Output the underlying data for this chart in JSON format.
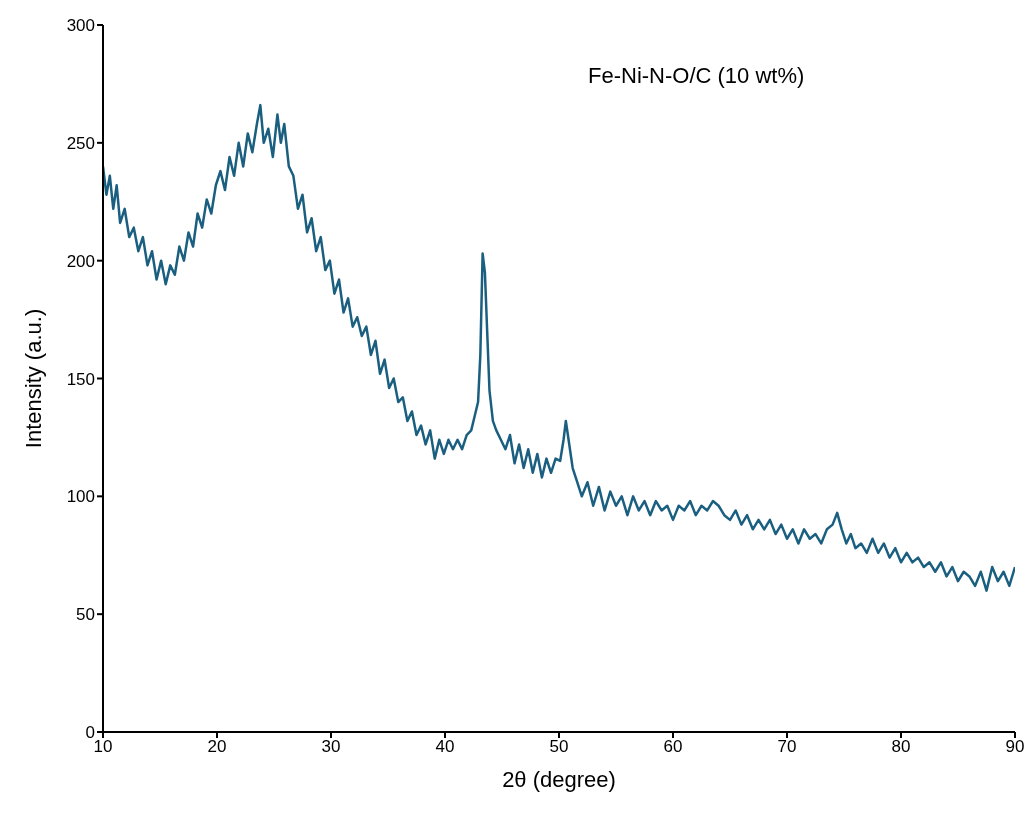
{
  "chart_data": {
    "type": "line",
    "xlabel": "2θ (degree)",
    "ylabel": "Intensity (a.u.)",
    "annotations": [
      "Fe-Ni-N-O/C (10 wt%)"
    ],
    "xlim": [
      10,
      90
    ],
    "ylim": [
      0,
      300
    ],
    "xticks": [
      10,
      20,
      30,
      40,
      50,
      60,
      70,
      80,
      90
    ],
    "yticks": [
      0,
      50,
      100,
      150,
      200,
      250,
      300
    ],
    "grid": false,
    "legend": false,
    "marker": "none",
    "line_style": "solid",
    "series": [
      {
        "color": "#1b5f80",
        "x": [
          10,
          10.3,
          10.6,
          10.9,
          11.2,
          11.5,
          11.9,
          12.3,
          12.7,
          13.1,
          13.5,
          13.9,
          14.3,
          14.7,
          15.1,
          15.5,
          15.9,
          16.3,
          16.7,
          17.1,
          17.5,
          17.9,
          18.3,
          18.7,
          19.1,
          19.5,
          19.9,
          20.3,
          20.7,
          21.1,
          21.5,
          21.9,
          22.3,
          22.7,
          23.1,
          23.5,
          23.8,
          24.1,
          24.5,
          24.9,
          25.3,
          25.6,
          25.9,
          26.3,
          26.7,
          27.1,
          27.5,
          27.9,
          28.3,
          28.7,
          29.1,
          29.5,
          29.9,
          30.3,
          30.7,
          31.1,
          31.5,
          31.9,
          32.3,
          32.7,
          33.1,
          33.5,
          33.9,
          34.3,
          34.7,
          35.1,
          35.5,
          35.9,
          36.3,
          36.7,
          37.1,
          37.5,
          37.9,
          38.3,
          38.7,
          39.1,
          39.5,
          39.9,
          40.3,
          40.7,
          41.1,
          41.5,
          41.9,
          42.3,
          42.6,
          42.9,
          43.1,
          43.3,
          43.5,
          43.7,
          43.9,
          44.2,
          44.5,
          44.9,
          45.3,
          45.7,
          46.1,
          46.5,
          46.9,
          47.3,
          47.7,
          48.1,
          48.5,
          48.9,
          49.3,
          49.7,
          50.1,
          50.4,
          50.6,
          50.9,
          51.2,
          51.6,
          52,
          52.5,
          53,
          53.5,
          54,
          54.5,
          55,
          55.5,
          56,
          56.5,
          57,
          57.5,
          58,
          58.5,
          59,
          59.5,
          60,
          60.5,
          61,
          61.5,
          62,
          62.5,
          63,
          63.5,
          64,
          64.5,
          65,
          65.5,
          66,
          66.5,
          67,
          67.5,
          68,
          68.5,
          69,
          69.5,
          70,
          70.5,
          71,
          71.5,
          72,
          72.5,
          73,
          73.5,
          74,
          74.4,
          74.8,
          75.2,
          75.6,
          76,
          76.5,
          77,
          77.5,
          78,
          78.5,
          79,
          79.5,
          80,
          80.5,
          81,
          81.5,
          82,
          82.5,
          83,
          83.5,
          84,
          84.5,
          85,
          85.5,
          86,
          86.5,
          87,
          87.5,
          88,
          88.5,
          89,
          89.5,
          90
        ],
        "values": [
          240,
          228,
          236,
          222,
          232,
          216,
          222,
          210,
          214,
          204,
          210,
          198,
          204,
          192,
          200,
          190,
          198,
          194,
          206,
          200,
          212,
          206,
          220,
          214,
          226,
          220,
          232,
          238,
          230,
          244,
          236,
          250,
          240,
          254,
          246,
          258,
          266,
          250,
          256,
          244,
          262,
          250,
          258,
          240,
          236,
          222,
          228,
          212,
          218,
          204,
          210,
          196,
          200,
          186,
          192,
          178,
          184,
          172,
          176,
          168,
          172,
          160,
          166,
          152,
          158,
          146,
          150,
          140,
          142,
          132,
          136,
          126,
          130,
          122,
          128,
          116,
          124,
          118,
          124,
          120,
          124,
          120,
          126,
          128,
          134,
          140,
          160,
          203,
          195,
          170,
          145,
          132,
          128,
          124,
          120,
          126,
          114,
          122,
          112,
          120,
          110,
          118,
          108,
          116,
          110,
          116,
          115,
          124,
          132,
          122,
          112,
          106,
          100,
          106,
          96,
          104,
          94,
          102,
          96,
          100,
          92,
          100,
          94,
          98,
          92,
          98,
          94,
          96,
          90,
          96,
          94,
          98,
          92,
          96,
          94,
          98,
          96,
          92,
          90,
          94,
          88,
          92,
          86,
          90,
          86,
          90,
          84,
          88,
          82,
          86,
          80,
          86,
          82,
          84,
          80,
          86,
          88,
          93,
          86,
          80,
          84,
          78,
          80,
          76,
          82,
          76,
          80,
          74,
          78,
          72,
          76,
          72,
          74,
          70,
          72,
          68,
          72,
          66,
          70,
          64,
          68,
          66,
          62,
          68,
          60,
          70,
          64,
          68,
          62,
          70
        ]
      }
    ]
  }
}
